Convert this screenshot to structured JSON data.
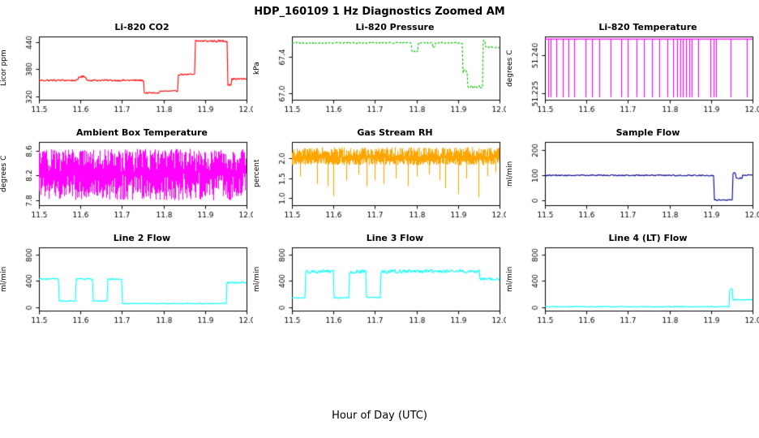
{
  "chart_data": {
    "type": "line",
    "title": "HDP_160109  1 Hz Diagnostics Zoomed AM",
    "xlabel": "Hour of Day (UTC)",
    "xlim": [
      11.5,
      12.0
    ],
    "xticks": [
      11.5,
      11.6,
      11.7,
      11.8,
      11.9,
      12.0
    ],
    "xtick_labels": [
      "11.5",
      "11.6",
      "11.7",
      "11.8",
      "11.9",
      "12.0"
    ],
    "panels": [
      {
        "title": "Li-820 CO2",
        "ylabel": "Licor ppm",
        "color": "#FF0000",
        "kind": "line",
        "ylim": [
          312,
          452
        ],
        "ytick_vals": [
          320,
          380,
          440
        ],
        "ytick_labels": [
          "320",
          "380",
          "440"
        ],
        "segments": [
          [
            11.5,
            11.595,
            355,
            2
          ],
          [
            11.595,
            11.615,
            363,
            2.5
          ],
          [
            11.615,
            11.753,
            355,
            2
          ],
          [
            11.753,
            11.79,
            327,
            1.5
          ],
          [
            11.79,
            11.835,
            331,
            1.5
          ],
          [
            11.835,
            11.876,
            368,
            1.5
          ],
          [
            11.876,
            11.955,
            442,
            2.5
          ],
          [
            11.955,
            11.963,
            347,
            4
          ],
          [
            11.963,
            12.0,
            358,
            2
          ]
        ]
      },
      {
        "title": "Li-820 Pressure",
        "ylabel": "kPa",
        "color": "#00BB00",
        "kind": "line",
        "dash": [
          3,
          2
        ],
        "ylim": [
          66.93,
          67.62
        ],
        "ytick_vals": [
          67.0,
          67.4
        ],
        "ytick_labels": [
          "67.0",
          "67.4"
        ],
        "segments": [
          [
            11.5,
            11.788,
            67.55,
            0.008
          ],
          [
            11.788,
            11.803,
            67.46,
            0.01
          ],
          [
            11.803,
            11.838,
            67.55,
            0.008
          ],
          [
            11.838,
            11.844,
            67.5,
            0.01
          ],
          [
            11.844,
            11.912,
            67.55,
            0.008
          ],
          [
            11.912,
            11.922,
            67.24,
            0.02
          ],
          [
            11.922,
            11.96,
            67.07,
            0.015
          ],
          [
            11.96,
            11.966,
            67.58,
            0.01
          ],
          [
            11.966,
            12.0,
            67.5,
            0.008
          ]
        ]
      },
      {
        "title": "Li-820 Temperature",
        "ylabel": "degrees C",
        "color": "#FF00FF",
        "kind": "spikes",
        "ylim": [
          51.2225,
          51.2475
        ],
        "ytick_vals": [
          51.225,
          51.24
        ],
        "ytick_labels": [
          "51.225",
          "51.240"
        ],
        "base": 51.2465,
        "spikes": [
          [
            11.507,
            51.2235
          ],
          [
            11.513,
            51.2235
          ],
          [
            11.528,
            51.2235
          ],
          [
            11.543,
            51.2235
          ],
          [
            11.556,
            51.2235
          ],
          [
            11.57,
            51.2235
          ],
          [
            11.598,
            51.2235
          ],
          [
            11.614,
            51.2235
          ],
          [
            11.63,
            51.2235
          ],
          [
            11.658,
            51.2235
          ],
          [
            11.684,
            51.2235
          ],
          [
            11.7,
            51.2235
          ],
          [
            11.72,
            51.2235
          ],
          [
            11.739,
            51.2235
          ],
          [
            11.758,
            51.2235
          ],
          [
            11.775,
            51.2235
          ],
          [
            11.794,
            51.2235
          ],
          [
            11.808,
            51.2235
          ],
          [
            11.818,
            51.2235
          ],
          [
            11.826,
            51.2235
          ],
          [
            11.833,
            51.2235
          ],
          [
            11.84,
            51.2235
          ],
          [
            11.847,
            51.2235
          ],
          [
            11.853,
            51.2235
          ],
          [
            11.87,
            51.2235
          ],
          [
            11.898,
            51.2235
          ],
          [
            11.906,
            51.2235
          ],
          [
            11.913,
            51.2235
          ],
          [
            11.948,
            51.2235
          ],
          [
            11.986,
            51.2235
          ]
        ]
      },
      {
        "title": "Ambient Box Temperature",
        "ylabel": "degrees C",
        "color": "#FF00FF",
        "kind": "band",
        "ylim": [
          7.72,
          8.74
        ],
        "ytick_vals": [
          7.8,
          8.2,
          8.6
        ],
        "ytick_labels": [
          "7.8",
          "8.2",
          "8.6"
        ],
        "base": 8.25,
        "amp_up": 0.38,
        "amp_dn": 0.45,
        "down_spikes": []
      },
      {
        "title": "Gas Stream RH",
        "ylabel": "percent",
        "color": "#FFA500",
        "kind": "band",
        "ylim": [
          0.82,
          2.42
        ],
        "ytick_vals": [
          1.0,
          1.5,
          2.0
        ],
        "ytick_labels": [
          "1.0",
          "1.5",
          "2.0"
        ],
        "base": 2.03,
        "amp_up": 0.26,
        "amp_dn": 0.2,
        "down_spikes": [
          [
            11.52,
            1.55
          ],
          [
            11.56,
            1.35
          ],
          [
            11.585,
            1.3
          ],
          [
            11.6,
            1.05
          ],
          [
            11.63,
            1.45
          ],
          [
            11.66,
            1.6
          ],
          [
            11.68,
            1.3
          ],
          [
            11.7,
            1.45
          ],
          [
            11.72,
            1.35
          ],
          [
            11.75,
            1.5
          ],
          [
            11.78,
            1.3
          ],
          [
            11.8,
            1.55
          ],
          [
            11.83,
            1.6
          ],
          [
            11.855,
            1.45
          ],
          [
            11.87,
            1.25
          ],
          [
            11.9,
            1.1
          ],
          [
            11.92,
            1.5
          ],
          [
            11.95,
            1.02
          ],
          [
            11.97,
            1.55
          ],
          [
            11.99,
            1.65
          ]
        ]
      },
      {
        "title": "Sample Flow",
        "ylabel": "ml/min",
        "color": "#00008B",
        "kind": "line",
        "ylim": [
          -18,
          232
        ],
        "ytick_vals": [
          0,
          100,
          200
        ],
        "ytick_labels": [
          "0",
          "100",
          "200"
        ],
        "segments": [
          [
            11.5,
            11.908,
            100,
            2.5
          ],
          [
            11.908,
            11.952,
            2,
            2
          ],
          [
            11.952,
            11.96,
            108,
            3
          ],
          [
            11.96,
            11.976,
            89,
            3
          ],
          [
            11.976,
            12.0,
            101,
            2.5
          ]
        ]
      },
      {
        "title": "Line 2 Flow",
        "ylabel": "ml/min",
        "color": "#00FFFF",
        "kind": "line",
        "ylim": [
          -45,
          905
        ],
        "ytick_vals": [
          0,
          400,
          800
        ],
        "ytick_labels": [
          "0",
          "400",
          "800"
        ],
        "segments": [
          [
            11.5,
            11.548,
            430,
            12
          ],
          [
            11.548,
            11.588,
            100,
            8
          ],
          [
            11.588,
            11.63,
            430,
            12
          ],
          [
            11.63,
            11.666,
            100,
            8
          ],
          [
            11.666,
            11.701,
            430,
            12
          ],
          [
            11.701,
            11.953,
            62,
            6
          ],
          [
            11.953,
            12.0,
            375,
            12
          ]
        ]
      },
      {
        "title": "Line 3 Flow",
        "ylabel": "ml/min",
        "color": "#00FFFF",
        "kind": "line",
        "ylim": [
          -45,
          905
        ],
        "ytick_vals": [
          0,
          400,
          800
        ],
        "ytick_labels": [
          "0",
          "400",
          "800"
        ],
        "segments": [
          [
            11.5,
            11.532,
            150,
            10
          ],
          [
            11.532,
            11.6,
            545,
            28
          ],
          [
            11.6,
            11.638,
            150,
            10
          ],
          [
            11.638,
            11.678,
            545,
            28
          ],
          [
            11.678,
            11.714,
            150,
            10
          ],
          [
            11.714,
            11.953,
            545,
            30
          ],
          [
            11.953,
            12.0,
            430,
            18
          ]
        ]
      },
      {
        "title": "Line 4 (LT) Flow",
        "ylabel": "ml/min",
        "color": "#00FFFF",
        "kind": "line",
        "ylim": [
          -45,
          905
        ],
        "ytick_vals": [
          0,
          400,
          800
        ],
        "ytick_labels": [
          "0",
          "400",
          "800"
        ],
        "segments": [
          [
            11.5,
            11.945,
            15,
            7
          ],
          [
            11.945,
            11.953,
            270,
            15
          ],
          [
            11.953,
            12.0,
            118,
            8
          ]
        ]
      }
    ]
  }
}
